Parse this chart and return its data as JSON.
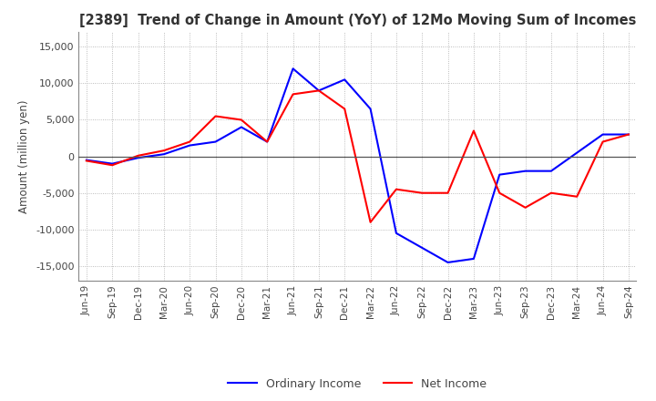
{
  "title": "[2389]  Trend of Change in Amount (YoY) of 12Mo Moving Sum of Incomes",
  "ylabel": "Amount (million yen)",
  "ylim": [
    -17000,
    17000
  ],
  "yticks": [
    -15000,
    -10000,
    -5000,
    0,
    5000,
    10000,
    15000
  ],
  "background_color": "#ffffff",
  "grid_color": "#aaaaaa",
  "ordinary_income_color": "#0000ff",
  "net_income_color": "#ff0000",
  "x_labels": [
    "Jun-19",
    "Sep-19",
    "Dec-19",
    "Mar-20",
    "Jun-20",
    "Sep-20",
    "Dec-20",
    "Mar-21",
    "Jun-21",
    "Sep-21",
    "Dec-21",
    "Mar-22",
    "Jun-22",
    "Sep-22",
    "Dec-22",
    "Mar-23",
    "Jun-23",
    "Sep-23",
    "Dec-23",
    "Mar-24",
    "Jun-24",
    "Sep-24"
  ],
  "ordinary_income": [
    -500,
    -1000,
    -200,
    300,
    1500,
    2000,
    4000,
    2000,
    12000,
    9000,
    10500,
    6500,
    -10500,
    -12500,
    -14500,
    -14000,
    -2500,
    -2000,
    -2000,
    500,
    3000,
    3000
  ],
  "net_income": [
    -600,
    -1200,
    100,
    800,
    2000,
    5500,
    5000,
    2000,
    8500,
    9000,
    6500,
    -9000,
    -4500,
    -5000,
    -5000,
    3500,
    -5000,
    -7000,
    -5000,
    -5500,
    2000,
    3000
  ]
}
